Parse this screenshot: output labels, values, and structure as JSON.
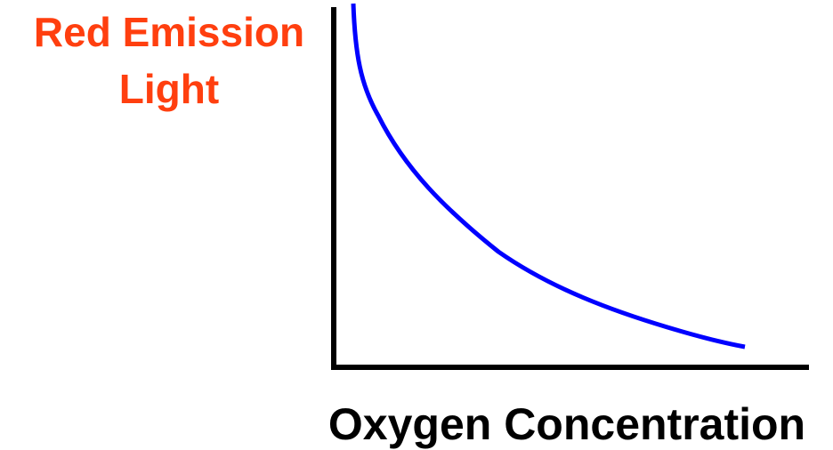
{
  "axis_labels": {
    "y": [
      "Red Emission",
      "Light"
    ],
    "x": "Oxygen Concentration"
  }
}
